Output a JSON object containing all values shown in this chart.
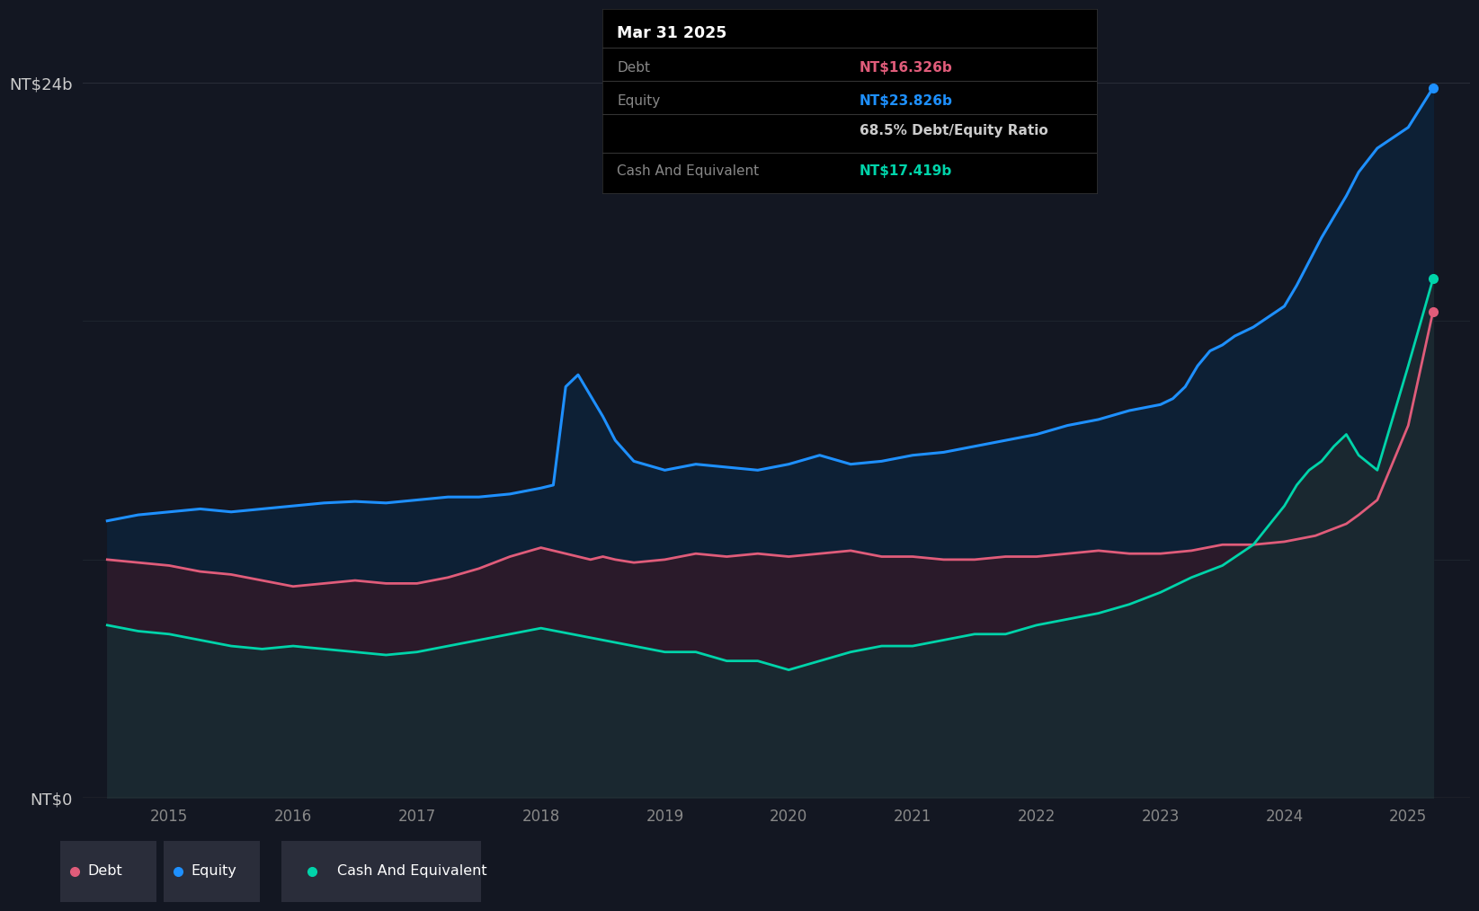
{
  "background_color": "#131722",
  "plot_bg_color": "#131722",
  "grid_color": "#2a2e39",
  "equity_color": "#1e90ff",
  "debt_color": "#e05c7a",
  "cash_color": "#00d4aa",
  "ylim": [
    0,
    26
  ],
  "ylabel_ticks": [
    "NT$0",
    "NT$24b"
  ],
  "ytick_vals": [
    0,
    24
  ],
  "xlabel_years": [
    "2015",
    "2016",
    "2017",
    "2018",
    "2019",
    "2020",
    "2021",
    "2022",
    "2023",
    "2024",
    "2025"
  ],
  "tooltip_title": "Mar 31 2025",
  "tooltip_debt_label": "Debt",
  "tooltip_debt_value": "NT$16.326b",
  "tooltip_equity_label": "Equity",
  "tooltip_equity_value": "NT$23.826b",
  "tooltip_ratio": "68.5% Debt/Equity Ratio",
  "tooltip_cash_label": "Cash And Equivalent",
  "tooltip_cash_value": "NT$17.419b",
  "legend_items": [
    "Debt",
    "Equity",
    "Cash And Equivalent"
  ],
  "equity_data": {
    "years": [
      2014.5,
      2014.75,
      2015.0,
      2015.25,
      2015.5,
      2015.75,
      2016.0,
      2016.25,
      2016.5,
      2016.75,
      2017.0,
      2017.25,
      2017.5,
      2017.75,
      2018.0,
      2018.1,
      2018.2,
      2018.3,
      2018.4,
      2018.5,
      2018.6,
      2018.75,
      2019.0,
      2019.25,
      2019.5,
      2019.75,
      2020.0,
      2020.25,
      2020.5,
      2020.75,
      2021.0,
      2021.25,
      2021.5,
      2021.75,
      2022.0,
      2022.25,
      2022.5,
      2022.75,
      2023.0,
      2023.1,
      2023.2,
      2023.3,
      2023.4,
      2023.5,
      2023.6,
      2023.75,
      2024.0,
      2024.1,
      2024.2,
      2024.3,
      2024.4,
      2024.5,
      2024.6,
      2024.75,
      2025.0,
      2025.2
    ],
    "values": [
      9.3,
      9.5,
      9.6,
      9.7,
      9.6,
      9.7,
      9.8,
      9.9,
      9.95,
      9.9,
      10.0,
      10.1,
      10.1,
      10.2,
      10.4,
      10.5,
      13.8,
      14.2,
      13.5,
      12.8,
      12.0,
      11.3,
      11.0,
      11.2,
      11.1,
      11.0,
      11.2,
      11.5,
      11.2,
      11.3,
      11.5,
      11.6,
      11.8,
      12.0,
      12.2,
      12.5,
      12.7,
      13.0,
      13.2,
      13.4,
      13.8,
      14.5,
      15.0,
      15.2,
      15.5,
      15.8,
      16.5,
      17.2,
      18.0,
      18.8,
      19.5,
      20.2,
      21.0,
      21.8,
      22.5,
      23.826
    ]
  },
  "debt_data": {
    "years": [
      2014.5,
      2014.75,
      2015.0,
      2015.25,
      2015.5,
      2015.75,
      2016.0,
      2016.25,
      2016.5,
      2016.75,
      2017.0,
      2017.25,
      2017.5,
      2017.75,
      2018.0,
      2018.1,
      2018.2,
      2018.3,
      2018.4,
      2018.5,
      2018.6,
      2018.75,
      2019.0,
      2019.25,
      2019.5,
      2019.75,
      2020.0,
      2020.25,
      2020.5,
      2020.75,
      2021.0,
      2021.25,
      2021.5,
      2021.75,
      2022.0,
      2022.25,
      2022.5,
      2022.75,
      2023.0,
      2023.25,
      2023.5,
      2023.75,
      2024.0,
      2024.25,
      2024.5,
      2024.6,
      2024.75,
      2025.0,
      2025.2
    ],
    "values": [
      8.0,
      7.9,
      7.8,
      7.6,
      7.5,
      7.3,
      7.1,
      7.2,
      7.3,
      7.2,
      7.2,
      7.4,
      7.7,
      8.1,
      8.4,
      8.3,
      8.2,
      8.1,
      8.0,
      8.1,
      8.0,
      7.9,
      8.0,
      8.2,
      8.1,
      8.2,
      8.1,
      8.2,
      8.3,
      8.1,
      8.1,
      8.0,
      8.0,
      8.1,
      8.1,
      8.2,
      8.3,
      8.2,
      8.2,
      8.3,
      8.5,
      8.5,
      8.6,
      8.8,
      9.2,
      9.5,
      10.0,
      12.5,
      16.326
    ]
  },
  "cash_data": {
    "years": [
      2014.5,
      2014.75,
      2015.0,
      2015.25,
      2015.5,
      2015.75,
      2016.0,
      2016.25,
      2016.5,
      2016.75,
      2017.0,
      2017.25,
      2017.5,
      2017.75,
      2018.0,
      2018.25,
      2018.5,
      2018.75,
      2019.0,
      2019.25,
      2019.5,
      2019.75,
      2020.0,
      2020.25,
      2020.5,
      2020.75,
      2021.0,
      2021.25,
      2021.5,
      2021.75,
      2022.0,
      2022.25,
      2022.5,
      2022.75,
      2023.0,
      2023.25,
      2023.5,
      2023.75,
      2024.0,
      2024.1,
      2024.2,
      2024.3,
      2024.4,
      2024.5,
      2024.6,
      2024.75,
      2025.0,
      2025.2
    ],
    "values": [
      5.8,
      5.6,
      5.5,
      5.3,
      5.1,
      5.0,
      5.1,
      5.0,
      4.9,
      4.8,
      4.9,
      5.1,
      5.3,
      5.5,
      5.7,
      5.5,
      5.3,
      5.1,
      4.9,
      4.9,
      4.6,
      4.6,
      4.3,
      4.6,
      4.9,
      5.1,
      5.1,
      5.3,
      5.5,
      5.5,
      5.8,
      6.0,
      6.2,
      6.5,
      6.9,
      7.4,
      7.8,
      8.5,
      9.8,
      10.5,
      11.0,
      11.3,
      11.8,
      12.2,
      11.5,
      11.0,
      14.5,
      17.419
    ]
  }
}
